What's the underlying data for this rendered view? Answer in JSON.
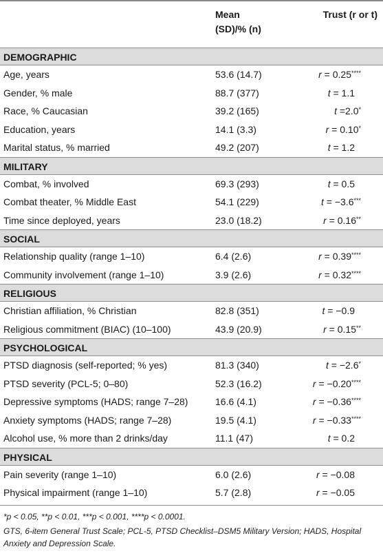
{
  "header": {
    "col1": "",
    "col2_line1": "Mean",
    "col2_line2": "(SD)/% (n)",
    "col3": "Trust (r or t)"
  },
  "sections": [
    {
      "title": "DEMOGRAPHIC",
      "rows": [
        {
          "label": "Age, years",
          "mean": "53.6 (14.7)",
          "stat_letter": "r",
          "stat_value": " = 0.25",
          "stars": "****"
        },
        {
          "label": "Gender, % male",
          "mean": "88.7 (377)",
          "stat_letter": "t",
          "stat_value": " = 1.1",
          "stars": ""
        },
        {
          "label": "Race, % Caucasian",
          "mean": "39.2 (165)",
          "stat_letter": "t",
          "stat_value": " =2.0",
          "stars": "*"
        },
        {
          "label": "Education, years",
          "mean": "14.1 (3.3)",
          "stat_letter": "r",
          "stat_value": " = 0.10",
          "stars": "*"
        },
        {
          "label": "Marital status, % married",
          "mean": "49.2 (207)",
          "stat_letter": "t",
          "stat_value": " = 1.2",
          "stars": ""
        }
      ]
    },
    {
      "title": "MILITARY",
      "rows": [
        {
          "label": "Combat, % involved",
          "mean": "69.3 (293)",
          "stat_letter": "t",
          "stat_value": " = 0.5",
          "stars": ""
        },
        {
          "label": "Combat theater, % Middle East",
          "mean": "54.1 (229)",
          "stat_letter": "t",
          "stat_value": " = −3.6",
          "stars": "***"
        },
        {
          "label": "Time since deployed, years",
          "mean": "23.0 (18.2)",
          "stat_letter": "r",
          "stat_value": " = 0.16",
          "stars": "**"
        }
      ]
    },
    {
      "title": "SOCIAL",
      "rows": [
        {
          "label": "Relationship quality (range 1–10)",
          "mean": "6.4 (2.6)",
          "stat_letter": "r",
          "stat_value": " = 0.39",
          "stars": "****"
        },
        {
          "label": "Community involvement (range 1–10)",
          "mean": "3.9 (2.6)",
          "stat_letter": "r",
          "stat_value": " = 0.32",
          "stars": "****"
        }
      ]
    },
    {
      "title": "RELIGIOUS",
      "rows": [
        {
          "label": "Christian affiliation, % Christian",
          "mean": "82.8 (351)",
          "stat_letter": "t",
          "stat_value": " = −0.9",
          "stars": ""
        },
        {
          "label": "Religious commitment (BIAC) (10–100)",
          "mean": "43.9 (20.9)",
          "stat_letter": "r",
          "stat_value": " = 0.15",
          "stars": "**"
        }
      ]
    },
    {
      "title": "PSYCHOLOGICAL",
      "rows": [
        {
          "label": "PTSD diagnosis (self-reported; % yes)",
          "mean": "81.3 (340)",
          "stat_letter": "t",
          "stat_value": " = −2.6",
          "stars": "*"
        },
        {
          "label": "PTSD severity (PCL-5; 0–80)",
          "mean": "52.3 (16.2)",
          "stat_letter": "r",
          "stat_value": " = −0.20",
          "stars": "****"
        },
        {
          "label": "Depressive symptoms (HADS; range 7–28)",
          "mean": "16.6 (4.1)",
          "stat_letter": "r",
          "stat_value": " = −0.36",
          "stars": "****"
        },
        {
          "label": "Anxiety symptoms (HADS; range 7–28)",
          "mean": "19.5 (4.1)",
          "stat_letter": "r",
          "stat_value": " = −0.33",
          "stars": "****"
        },
        {
          "label": "Alcohol use, % more than 2 drinks/day",
          "mean": "11.1 (47)",
          "stat_letter": "t",
          "stat_value": " = 0.2",
          "stars": ""
        }
      ]
    },
    {
      "title": "PHYSICAL",
      "rows": [
        {
          "label": "Pain severity (range 1–10)",
          "mean": "6.0 (2.6)",
          "stat_letter": "r",
          "stat_value": " = −0.08",
          "stars": ""
        },
        {
          "label": "Physical impairment (range 1–10)",
          "mean": "5.7 (2.8)",
          "stat_letter": "r",
          "stat_value": " = −0.05",
          "stars": ""
        }
      ]
    }
  ],
  "footnotes": {
    "significance": "*p < 0.05, **p < 0.01, ***p < 0.001, ****p < 0.0001.",
    "abbreviations": "GTS, 6-item General Trust Scale; PCL-5, PTSD Checklist–DSM5 Military Version; HADS, Hospital Anxiety and Depression Scale."
  }
}
